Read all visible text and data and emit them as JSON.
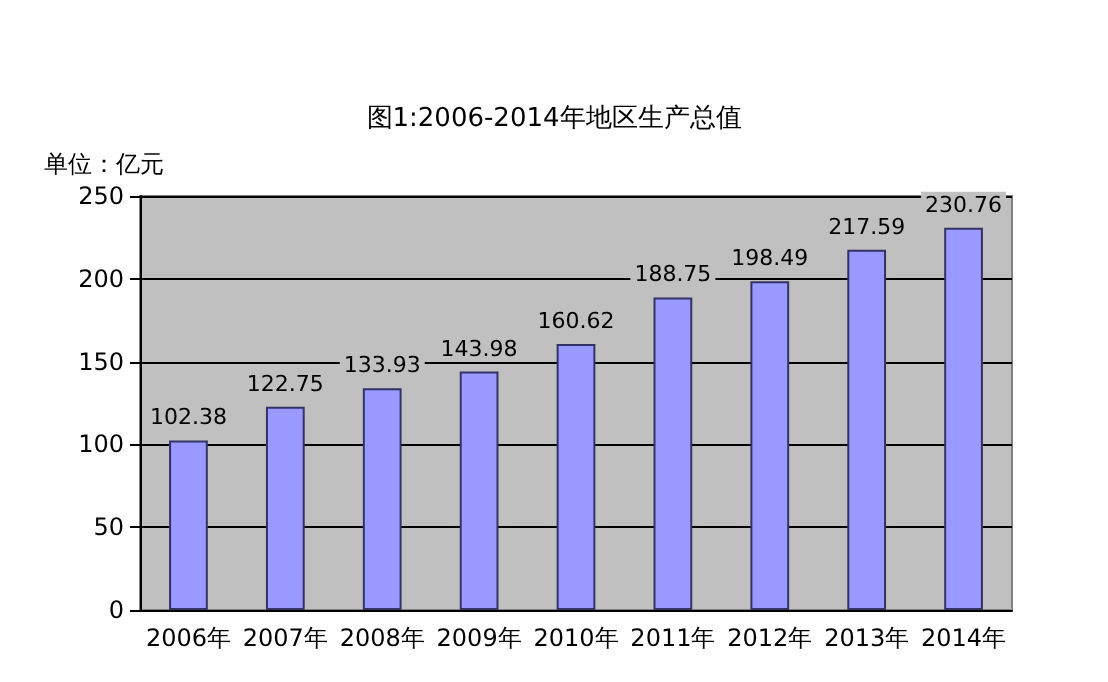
{
  "chart_data": {
    "type": "bar",
    "title": "图1:2006-2014年地区生产总值",
    "ylabel": "单位：亿元",
    "categories": [
      "2006年",
      "2007年",
      "2008年",
      "2009年",
      "2010年",
      "2011年",
      "2012年",
      "2013年",
      "2014年"
    ],
    "values": [
      102.38,
      122.75,
      133.93,
      143.98,
      160.62,
      188.75,
      198.49,
      217.59,
      230.76
    ],
    "color": "#9999ff",
    "ylim": [
      0,
      250
    ],
    "yticks": [
      0,
      50,
      100,
      150,
      200,
      250
    ],
    "grid": "y",
    "data_labels": true
  }
}
